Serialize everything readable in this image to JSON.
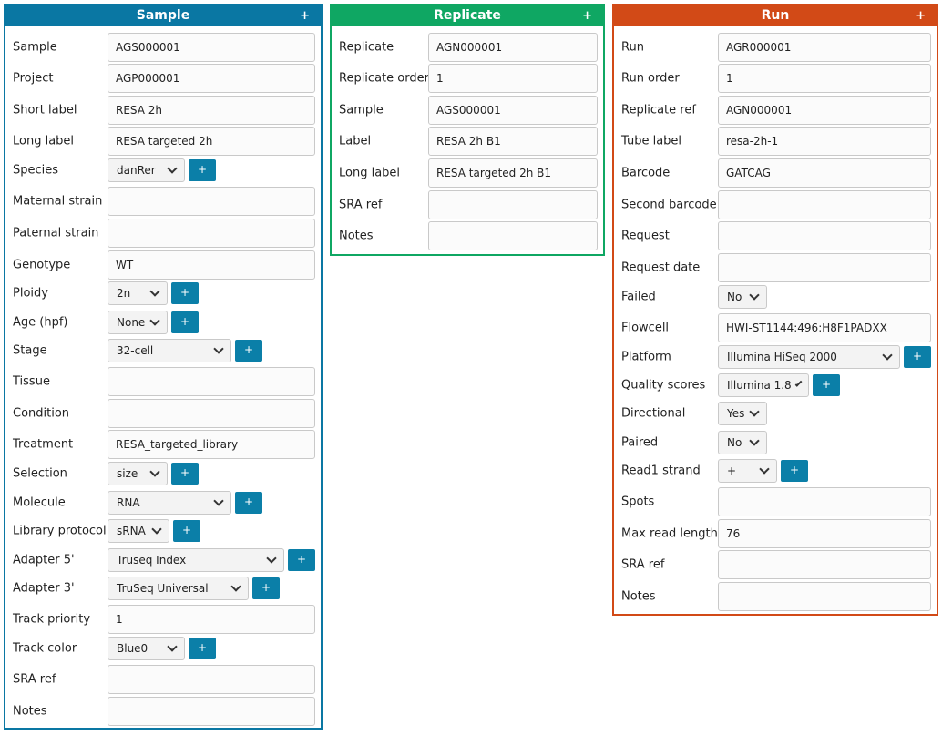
{
  "colors": {
    "sample": "#0a77a3",
    "replicate": "#0fa763",
    "run": "#d24a17",
    "add_button": "#0b7fa8"
  },
  "sample": {
    "title": "Sample",
    "add_label": "+",
    "fields": [
      {
        "label": "Sample",
        "value": "AGS000001"
      },
      {
        "label": "Project",
        "value": "AGP000001"
      },
      {
        "label": "Short label",
        "value": "RESA 2h"
      },
      {
        "label": "Long label",
        "value": "RESA targeted 2h"
      },
      {
        "label": "Species",
        "value": "danRer"
      },
      {
        "label": "Maternal strain",
        "value": ""
      },
      {
        "label": "Paternal strain",
        "value": ""
      },
      {
        "label": "Genotype",
        "value": "WT"
      },
      {
        "label": "Ploidy",
        "value": "2n"
      },
      {
        "label": "Age (hpf)",
        "value": "None"
      },
      {
        "label": "Stage",
        "value": "32-cell"
      },
      {
        "label": "Tissue",
        "value": ""
      },
      {
        "label": "Condition",
        "value": ""
      },
      {
        "label": "Treatment",
        "value": "RESA_targeted_library"
      },
      {
        "label": "Selection",
        "value": "size"
      },
      {
        "label": "Molecule",
        "value": "RNA"
      },
      {
        "label": "Library protocol",
        "value": "sRNA"
      },
      {
        "label": "Adapter 5'",
        "value": "Truseq Index"
      },
      {
        "label": "Adapter 3'",
        "value": "TruSeq Universal"
      },
      {
        "label": "Track priority",
        "value": "1"
      },
      {
        "label": "Track color",
        "value": "Blue0"
      },
      {
        "label": "SRA ref",
        "value": ""
      },
      {
        "label": "Notes",
        "value": ""
      }
    ]
  },
  "replicate": {
    "title": "Replicate",
    "add_label": "+",
    "fields": [
      {
        "label": "Replicate",
        "value": "AGN000001"
      },
      {
        "label": "Replicate order",
        "value": "1"
      },
      {
        "label": "Sample",
        "value": "AGS000001"
      },
      {
        "label": "Label",
        "value": "RESA 2h B1"
      },
      {
        "label": "Long label",
        "value": "RESA targeted 2h B1"
      },
      {
        "label": "SRA ref",
        "value": ""
      },
      {
        "label": "Notes",
        "value": ""
      }
    ]
  },
  "run": {
    "title": "Run",
    "add_label": "+",
    "fields": [
      {
        "label": "Run",
        "value": "AGR000001"
      },
      {
        "label": "Run order",
        "value": "1"
      },
      {
        "label": "Replicate ref",
        "value": "AGN000001"
      },
      {
        "label": "Tube label",
        "value": "resa-2h-1"
      },
      {
        "label": "Barcode",
        "value": "GATCAG"
      },
      {
        "label": "Second barcode",
        "value": ""
      },
      {
        "label": "Request",
        "value": ""
      },
      {
        "label": "Request date",
        "value": ""
      },
      {
        "label": "Failed",
        "value": "No"
      },
      {
        "label": "Flowcell",
        "value": "HWI-ST1144:496:H8F1PADXX"
      },
      {
        "label": "Platform",
        "value": "Illumina HiSeq 2000"
      },
      {
        "label": "Quality scores",
        "value": "Illumina 1.8"
      },
      {
        "label": "Directional",
        "value": "Yes"
      },
      {
        "label": "Paired",
        "value": "No"
      },
      {
        "label": "Read1 strand",
        "value": "+"
      },
      {
        "label": "Spots",
        "value": ""
      },
      {
        "label": "Max read length",
        "value": "76"
      },
      {
        "label": "SRA ref",
        "value": ""
      },
      {
        "label": "Notes",
        "value": ""
      }
    ]
  }
}
